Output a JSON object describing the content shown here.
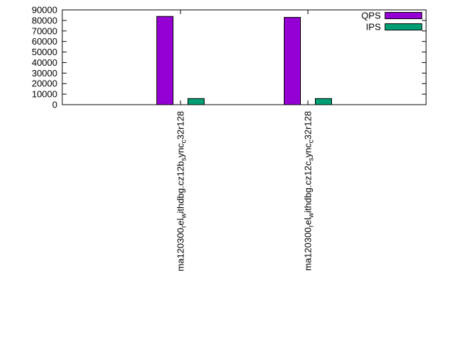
{
  "chart_data": {
    "type": "bar",
    "title": "",
    "xlabel": "",
    "ylabel": "",
    "ylim": [
      0,
      90000
    ],
    "ytick_step": 10000,
    "grid": false,
    "legend_position": "top-right-inside",
    "categories_plain": [
      "ma120300_rel_withdbg.cz12b_sync_c32r128",
      "ma120300_rel_withdbg.cz12c_sync_c32r128"
    ],
    "categories": [
      {
        "segments": [
          {
            "t": "ma120300"
          },
          {
            "t": "r",
            "sub": true
          },
          {
            "t": "el"
          },
          {
            "t": "w",
            "sub": true
          },
          {
            "t": "ithdbg.cz12b"
          },
          {
            "t": "s",
            "sub": true
          },
          {
            "t": "ync"
          },
          {
            "t": "c",
            "sub": true
          },
          {
            "t": "32r128"
          }
        ]
      },
      {
        "segments": [
          {
            "t": "ma120300"
          },
          {
            "t": "r",
            "sub": true
          },
          {
            "t": "el"
          },
          {
            "t": "w",
            "sub": true
          },
          {
            "t": "ithdbg.cz12c"
          },
          {
            "t": "s",
            "sub": true
          },
          {
            "t": "ync"
          },
          {
            "t": "c",
            "sub": true
          },
          {
            "t": "32r128"
          }
        ]
      }
    ],
    "series": [
      {
        "name": "QPS",
        "color": "#9400d3",
        "values": [
          83800,
          82900
        ]
      },
      {
        "name": "IPS",
        "color": "#009e73",
        "values": [
          5800,
          5800
        ]
      }
    ],
    "axis_color": "#000000",
    "background_color": "#ffffff"
  }
}
